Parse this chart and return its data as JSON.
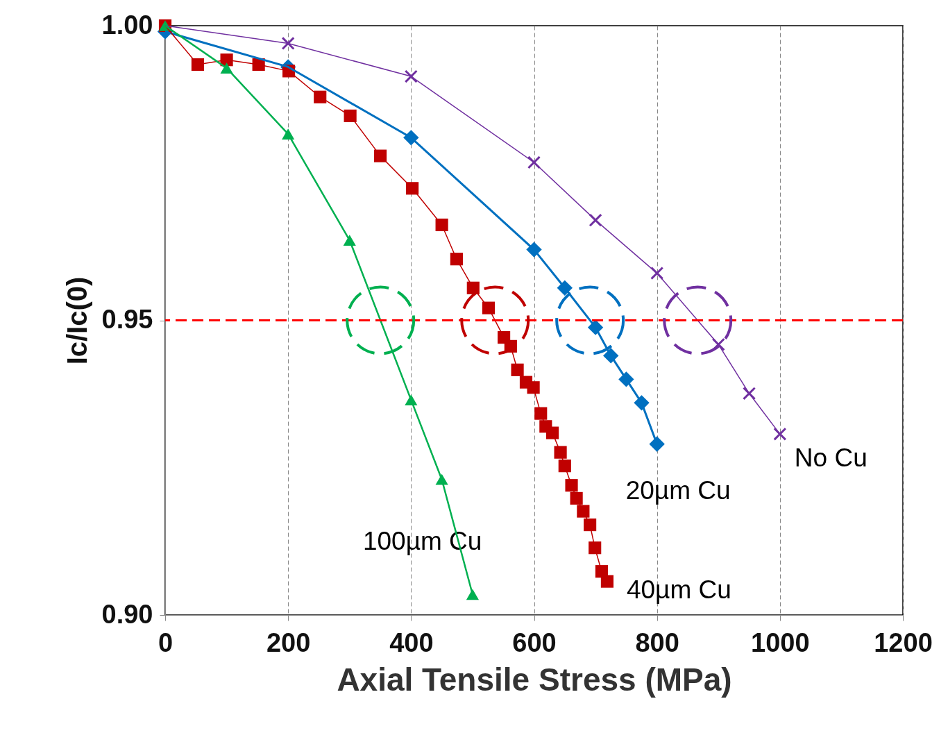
{
  "chart_data": {
    "type": "line",
    "xlabel": "Axial Tensile Stress (MPa)",
    "ylabel": "Ic/Ic(0)",
    "xlim": [
      0,
      1200
    ],
    "xticks": [
      0,
      200,
      400,
      600,
      800,
      {
        "value": 1000,
        "label": "1000"
      },
      {
        "value": 1200,
        "label": "1200"
      }
    ],
    "ylim": [
      0.9,
      1.0
    ],
    "yticks": [
      {
        "value": 0.9,
        "label": "0.90"
      },
      {
        "value": 0.95,
        "label": "0.95"
      },
      {
        "value": 1.0,
        "label": "1.00"
      }
    ],
    "grid": "x",
    "series": [
      {
        "name": "No Cu",
        "color": "#7030a0",
        "marker": "cross",
        "x": [
          0,
          200,
          400,
          600,
          700,
          800,
          900,
          950,
          1000
        ],
        "values": [
          1.0,
          0.997,
          0.9914,
          0.9768,
          0.967,
          0.958,
          0.9459,
          0.9376,
          0.9307
        ]
      },
      {
        "name": "20µm Cu",
        "color": "#0070c0",
        "marker": "diamond",
        "x": [
          0,
          200,
          400,
          600,
          650,
          700,
          725,
          750,
          775,
          800
        ],
        "values": [
          0.999,
          0.993,
          0.981,
          0.962,
          0.9555,
          0.9488,
          0.944,
          0.94,
          0.936,
          0.929
        ]
      },
      {
        "name": "40µm Cu",
        "color": "#c00000",
        "marker": "square",
        "x": [
          0,
          53,
          100,
          152,
          201,
          252,
          301,
          350,
          402,
          450,
          474,
          501,
          526,
          551,
          562,
          573,
          587,
          599,
          611,
          619,
          630,
          643,
          650,
          661,
          669,
          680,
          691,
          699,
          710,
          719
        ],
        "values": [
          1.0,
          0.9934,
          0.9942,
          0.9934,
          0.9923,
          0.9879,
          0.9847,
          0.9779,
          0.9724,
          0.9662,
          0.9604,
          0.9555,
          0.9521,
          0.9471,
          0.9456,
          0.9416,
          0.9395,
          0.9386,
          0.9342,
          0.932,
          0.9309,
          0.9276,
          0.9253,
          0.922,
          0.9198,
          0.9176,
          0.9153,
          0.9114,
          0.9074,
          0.9057
        ]
      },
      {
        "name": "100µm Cu",
        "color": "#00b050",
        "marker": "triangle",
        "x": [
          0,
          100,
          200,
          300,
          400,
          450,
          500
        ],
        "values": [
          1.0,
          0.9928,
          0.9816,
          0.9636,
          0.9365,
          0.923,
          0.9035
        ]
      }
    ],
    "ref_lines": [
      {
        "axis": "y",
        "value": 0.95,
        "color": "#ff0000",
        "line_style": "dashed"
      }
    ]
  }
}
